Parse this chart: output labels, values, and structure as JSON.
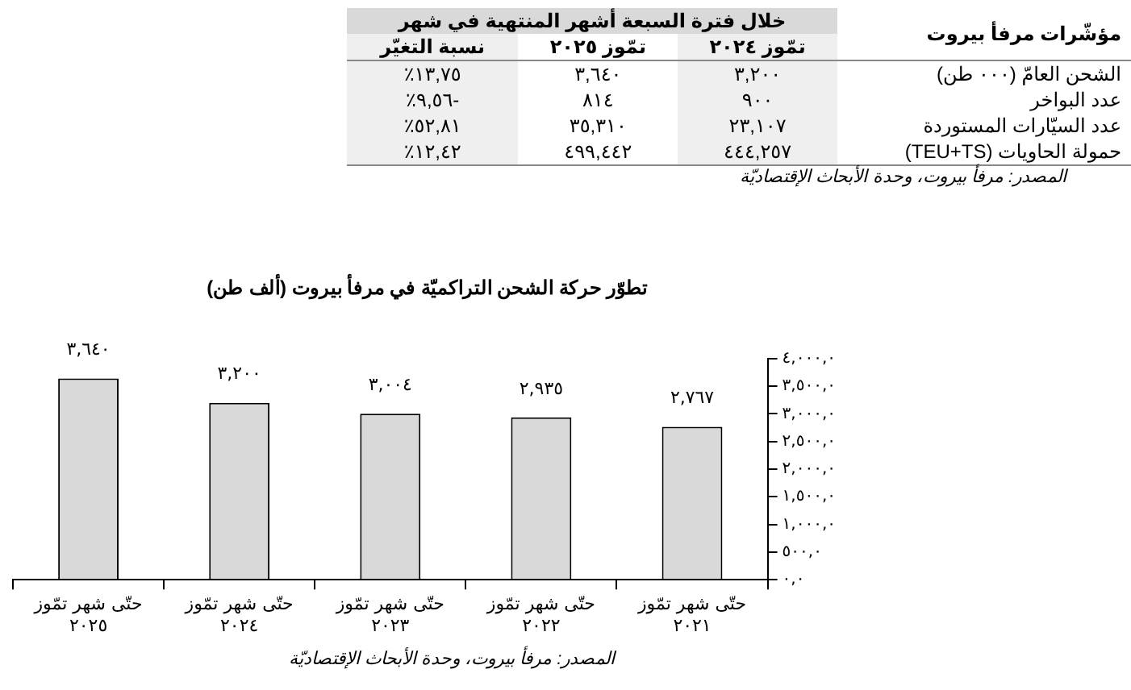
{
  "chart_data": [
    {
      "type": "other",
      "title": "مؤشّرات مرفأ بيروت",
      "subtitle": "خلال فترة السبعة أشهر المنتهية في شهر",
      "categories": [
        "نسبة التغيّر",
        "تمّوز ٢٠٢٥",
        "تمّوز ٢٠٢٤"
      ],
      "y_categories": [
        "الشحن العامّ (٠٠٠ طن)",
        "عدد البواخر",
        "عدد السيّارات المستوردة",
        "حمولة الحاويات (TEU+TS)"
      ],
      "cell_labels": [
        [
          "١٣,٧٥٪",
          "٣,٦٤٠",
          "٣,٢٠٠"
        ],
        [
          "-٩,٥٦٪",
          "٨١٤",
          "٩٠٠"
        ],
        [
          "٥٢,٨١٪",
          "٣٥,٣١٠",
          "٢٣,١٠٧"
        ],
        [
          "١٢,٤٢٪",
          "٤٩٩,٤٤٢",
          "٤٤٤,٢٥٧"
        ]
      ],
      "annotations": [
        "المصدر: مرفأ بيروت، وحدة الأبحاث الإقتصاديّة"
      ]
    },
    {
      "type": "bar",
      "title": "تطوّر حركة الشحن التراكميّة في مرفأ بيروت (ألف طن)",
      "categories": [
        "حتّى شهر تمّوز ٢٠٢٥",
        "حتّى شهر تمّوز ٢٠٢٤",
        "حتّى شهر تمّوز ٢٠٢٣",
        "حتّى شهر تمّوز ٢٠٢٢",
        "حتّى شهر تمّوز ٢٠٢١"
      ],
      "values": [
        3640,
        3200,
        3004,
        2935,
        2767
      ],
      "value_labels": [
        "٣,٦٤٠",
        "٣,٢٠٠",
        "٣,٠٠٤",
        "٢,٩٣٥",
        "٢,٧٦٧"
      ],
      "color": "#d9d9d9",
      "ylim": [
        0,
        4000
      ],
      "yticks": [
        {
          "value": 0,
          "label": "٠,٠"
        },
        {
          "value": 500,
          "label": "٥٠٠,٠"
        },
        {
          "value": 1000,
          "label": "١,٠٠٠,٠"
        },
        {
          "value": 1500,
          "label": "١,٥٠٠,٠"
        },
        {
          "value": 2000,
          "label": "٢,٠٠٠,٠"
        },
        {
          "value": 2500,
          "label": "٢,٥٠٠,٠"
        },
        {
          "value": 3000,
          "label": "٣,٠٠٠,٠"
        },
        {
          "value": 3500,
          "label": "٣,٥٠٠,٠"
        },
        {
          "value": 4000,
          "label": "٤,٠٠٠,٠"
        }
      ],
      "grid": false,
      "legend": false,
      "annotations": [
        "المصدر: مرفأ بيروت، وحدة الأبحاث الإقتصاديّة"
      ]
    }
  ]
}
